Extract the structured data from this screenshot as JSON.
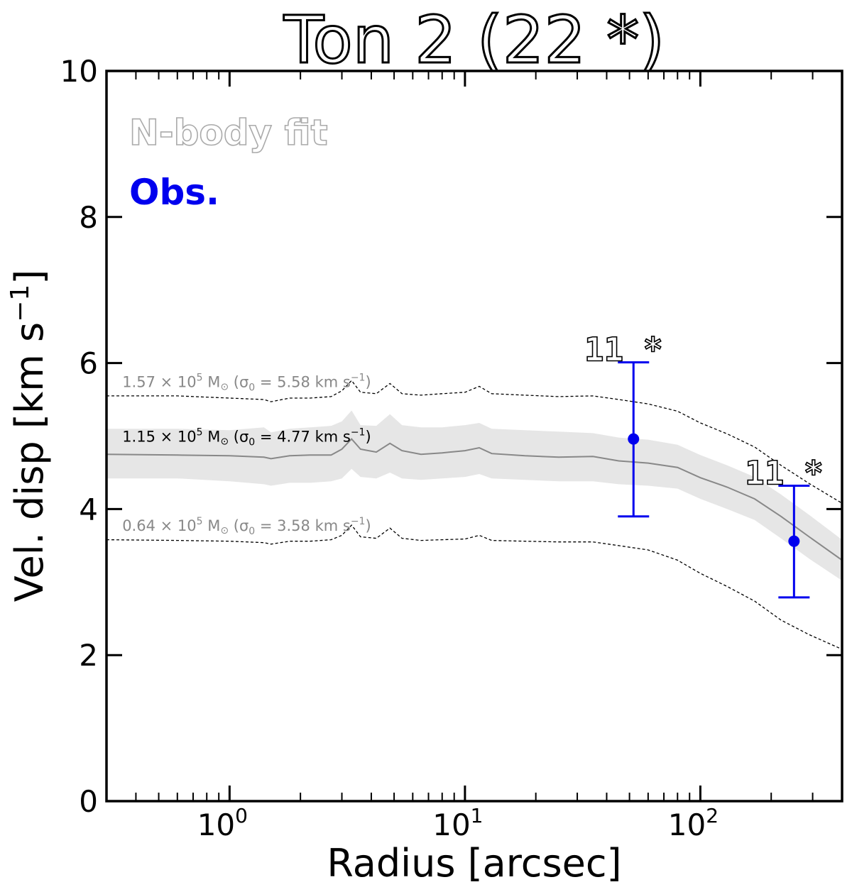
{
  "chart_data": {
    "type": "line",
    "title": "Ton 2 (22 *)",
    "xlabel": "Radius [arcsec]",
    "ylabel": "Vel. disp [km s",
    "ylabel_sup": "−1",
    "ylabel_tail": "]",
    "xscale": "log",
    "xlim": [
      0.3,
      400
    ],
    "ylim": [
      0,
      10
    ],
    "x_tick_labels": [
      {
        "x": 1,
        "base": "10",
        "exp": "0"
      },
      {
        "x": 10,
        "base": "10",
        "exp": "1"
      },
      {
        "x": 100,
        "base": "10",
        "exp": "2"
      }
    ],
    "y_ticks": [
      0,
      2,
      4,
      6,
      8,
      10
    ],
    "y_tick_labels": [
      "0",
      "2",
      "4",
      "6",
      "8",
      "10"
    ],
    "legend": {
      "placement": "top-left",
      "entries": [
        {
          "label": "N-body fit",
          "color": "#aaaaaa",
          "style": "outline"
        },
        {
          "label": "Obs.",
          "color": "#0000ee",
          "style": "filled"
        }
      ]
    },
    "model_curves": {
      "x": [
        0.3,
        0.6,
        1.0,
        1.4,
        1.5,
        1.8,
        2.2,
        2.7,
        3.0,
        3.3,
        3.6,
        4.2,
        4.8,
        5.4,
        6.5,
        8.0,
        10.0,
        11.5,
        13,
        18,
        25,
        35,
        45,
        60,
        80,
        100,
        130,
        170,
        220,
        290,
        400
      ],
      "best": [
        4.75,
        4.74,
        4.73,
        4.71,
        4.69,
        4.73,
        4.74,
        4.74,
        4.82,
        4.96,
        4.82,
        4.78,
        4.9,
        4.8,
        4.75,
        4.77,
        4.8,
        4.84,
        4.76,
        4.73,
        4.71,
        4.72,
        4.66,
        4.63,
        4.57,
        4.43,
        4.3,
        4.14,
        3.9,
        3.62,
        3.3
      ],
      "band_upper": [
        5.1,
        5.1,
        5.08,
        5.12,
        5.05,
        5.1,
        5.12,
        5.14,
        5.2,
        5.35,
        5.15,
        5.14,
        5.3,
        5.15,
        5.12,
        5.12,
        5.15,
        5.18,
        5.1,
        5.08,
        5.06,
        5.04,
        4.98,
        4.95,
        4.88,
        4.74,
        4.6,
        4.44,
        4.2,
        3.92,
        3.58
      ],
      "band_lower": [
        4.42,
        4.42,
        4.38,
        4.34,
        4.32,
        4.36,
        4.36,
        4.38,
        4.42,
        4.55,
        4.44,
        4.42,
        4.5,
        4.42,
        4.4,
        4.42,
        4.44,
        4.48,
        4.42,
        4.4,
        4.38,
        4.38,
        4.34,
        4.32,
        4.28,
        4.14,
        4.0,
        3.85,
        3.6,
        3.32,
        3.02
      ],
      "upper": [
        5.55,
        5.55,
        5.52,
        5.5,
        5.47,
        5.52,
        5.52,
        5.54,
        5.62,
        5.76,
        5.6,
        5.58,
        5.72,
        5.58,
        5.56,
        5.58,
        5.6,
        5.68,
        5.58,
        5.56,
        5.54,
        5.55,
        5.5,
        5.44,
        5.34,
        5.18,
        5.03,
        4.85,
        4.6,
        4.35,
        4.08
      ],
      "lower": [
        3.58,
        3.57,
        3.56,
        3.54,
        3.52,
        3.56,
        3.56,
        3.58,
        3.64,
        3.78,
        3.62,
        3.6,
        3.74,
        3.6,
        3.57,
        3.58,
        3.59,
        3.64,
        3.57,
        3.56,
        3.55,
        3.55,
        3.5,
        3.44,
        3.3,
        3.12,
        2.94,
        2.74,
        2.48,
        2.28,
        2.08
      ]
    },
    "curve_labels": [
      {
        "base": "1.57 × 10",
        "exp": "5",
        "unit": " M",
        "tail": " (σ",
        "sub": "0",
        "mid": " = 5.58 km s",
        "sup": "−1",
        "end": ")",
        "color": "#888888",
        "x": 0.35,
        "y": 5.75
      },
      {
        "base": "1.15 × 10",
        "exp": "5",
        "unit": " M",
        "tail": " (σ",
        "sub": "0",
        "mid": " = 4.77 km s",
        "sup": "−1",
        "end": ")",
        "color": "#000000",
        "x": 0.35,
        "y": 5.0
      },
      {
        "base": "0.64 × 10",
        "exp": "5",
        "unit": " M",
        "tail": " (σ",
        "sub": "0",
        "mid": " = 3.58 km s",
        "sup": "−1",
        "end": ")",
        "color": "#888888",
        "x": 0.35,
        "y": 3.78
      }
    ],
    "observations": [
      {
        "x": 52,
        "y": 4.96,
        "yerr_low": 3.9,
        "yerr_high": 6.01,
        "label": "11 *"
      },
      {
        "x": 250,
        "y": 3.56,
        "yerr_low": 2.79,
        "yerr_high": 4.32,
        "label": "11 *"
      }
    ],
    "colors": {
      "obs": "#0000ee",
      "band": "#e6e6e6",
      "model": "#888888",
      "dashed": "#000000"
    }
  }
}
